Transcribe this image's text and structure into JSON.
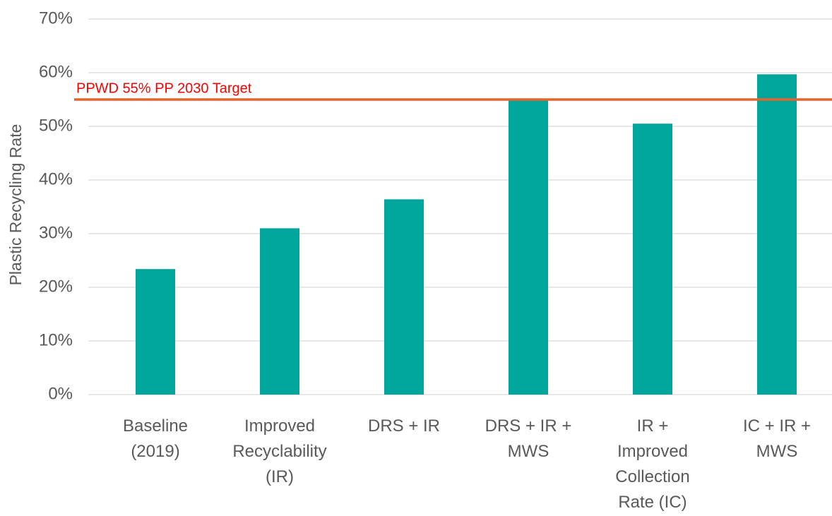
{
  "chart_data": {
    "type": "bar",
    "y_label": "Plastic Recycling Rate",
    "categories": [
      [
        "Baseline",
        "(2019)"
      ],
      [
        "Improved",
        "Recyclability",
        "(IR)"
      ],
      [
        "DRS + IR"
      ],
      [
        "DRS + IR +",
        "MWS"
      ],
      [
        "IR +",
        "Improved",
        "Collection",
        "Rate (IC)"
      ],
      [
        "IC + IR +",
        "MWS"
      ]
    ],
    "values": [
      23.4,
      31,
      36.4,
      55,
      50.5,
      59.7
    ],
    "color": "#00a69c",
    "ylim": [
      0,
      70
    ],
    "yticks": [
      {
        "value": 0,
        "label": "0%"
      },
      {
        "value": 10,
        "label": "10%"
      },
      {
        "value": 20,
        "label": "20%"
      },
      {
        "value": 30,
        "label": "30%"
      },
      {
        "value": 40,
        "label": "40%"
      },
      {
        "value": 50,
        "label": "50%"
      },
      {
        "value": 60,
        "label": "60%"
      },
      {
        "value": 70,
        "label": "70%"
      }
    ],
    "grid": true,
    "target": {
      "value": 55,
      "label": "PPWD 55% PP 2030 Target",
      "color": "#e8632b",
      "label_color": "#ff0000"
    }
  }
}
